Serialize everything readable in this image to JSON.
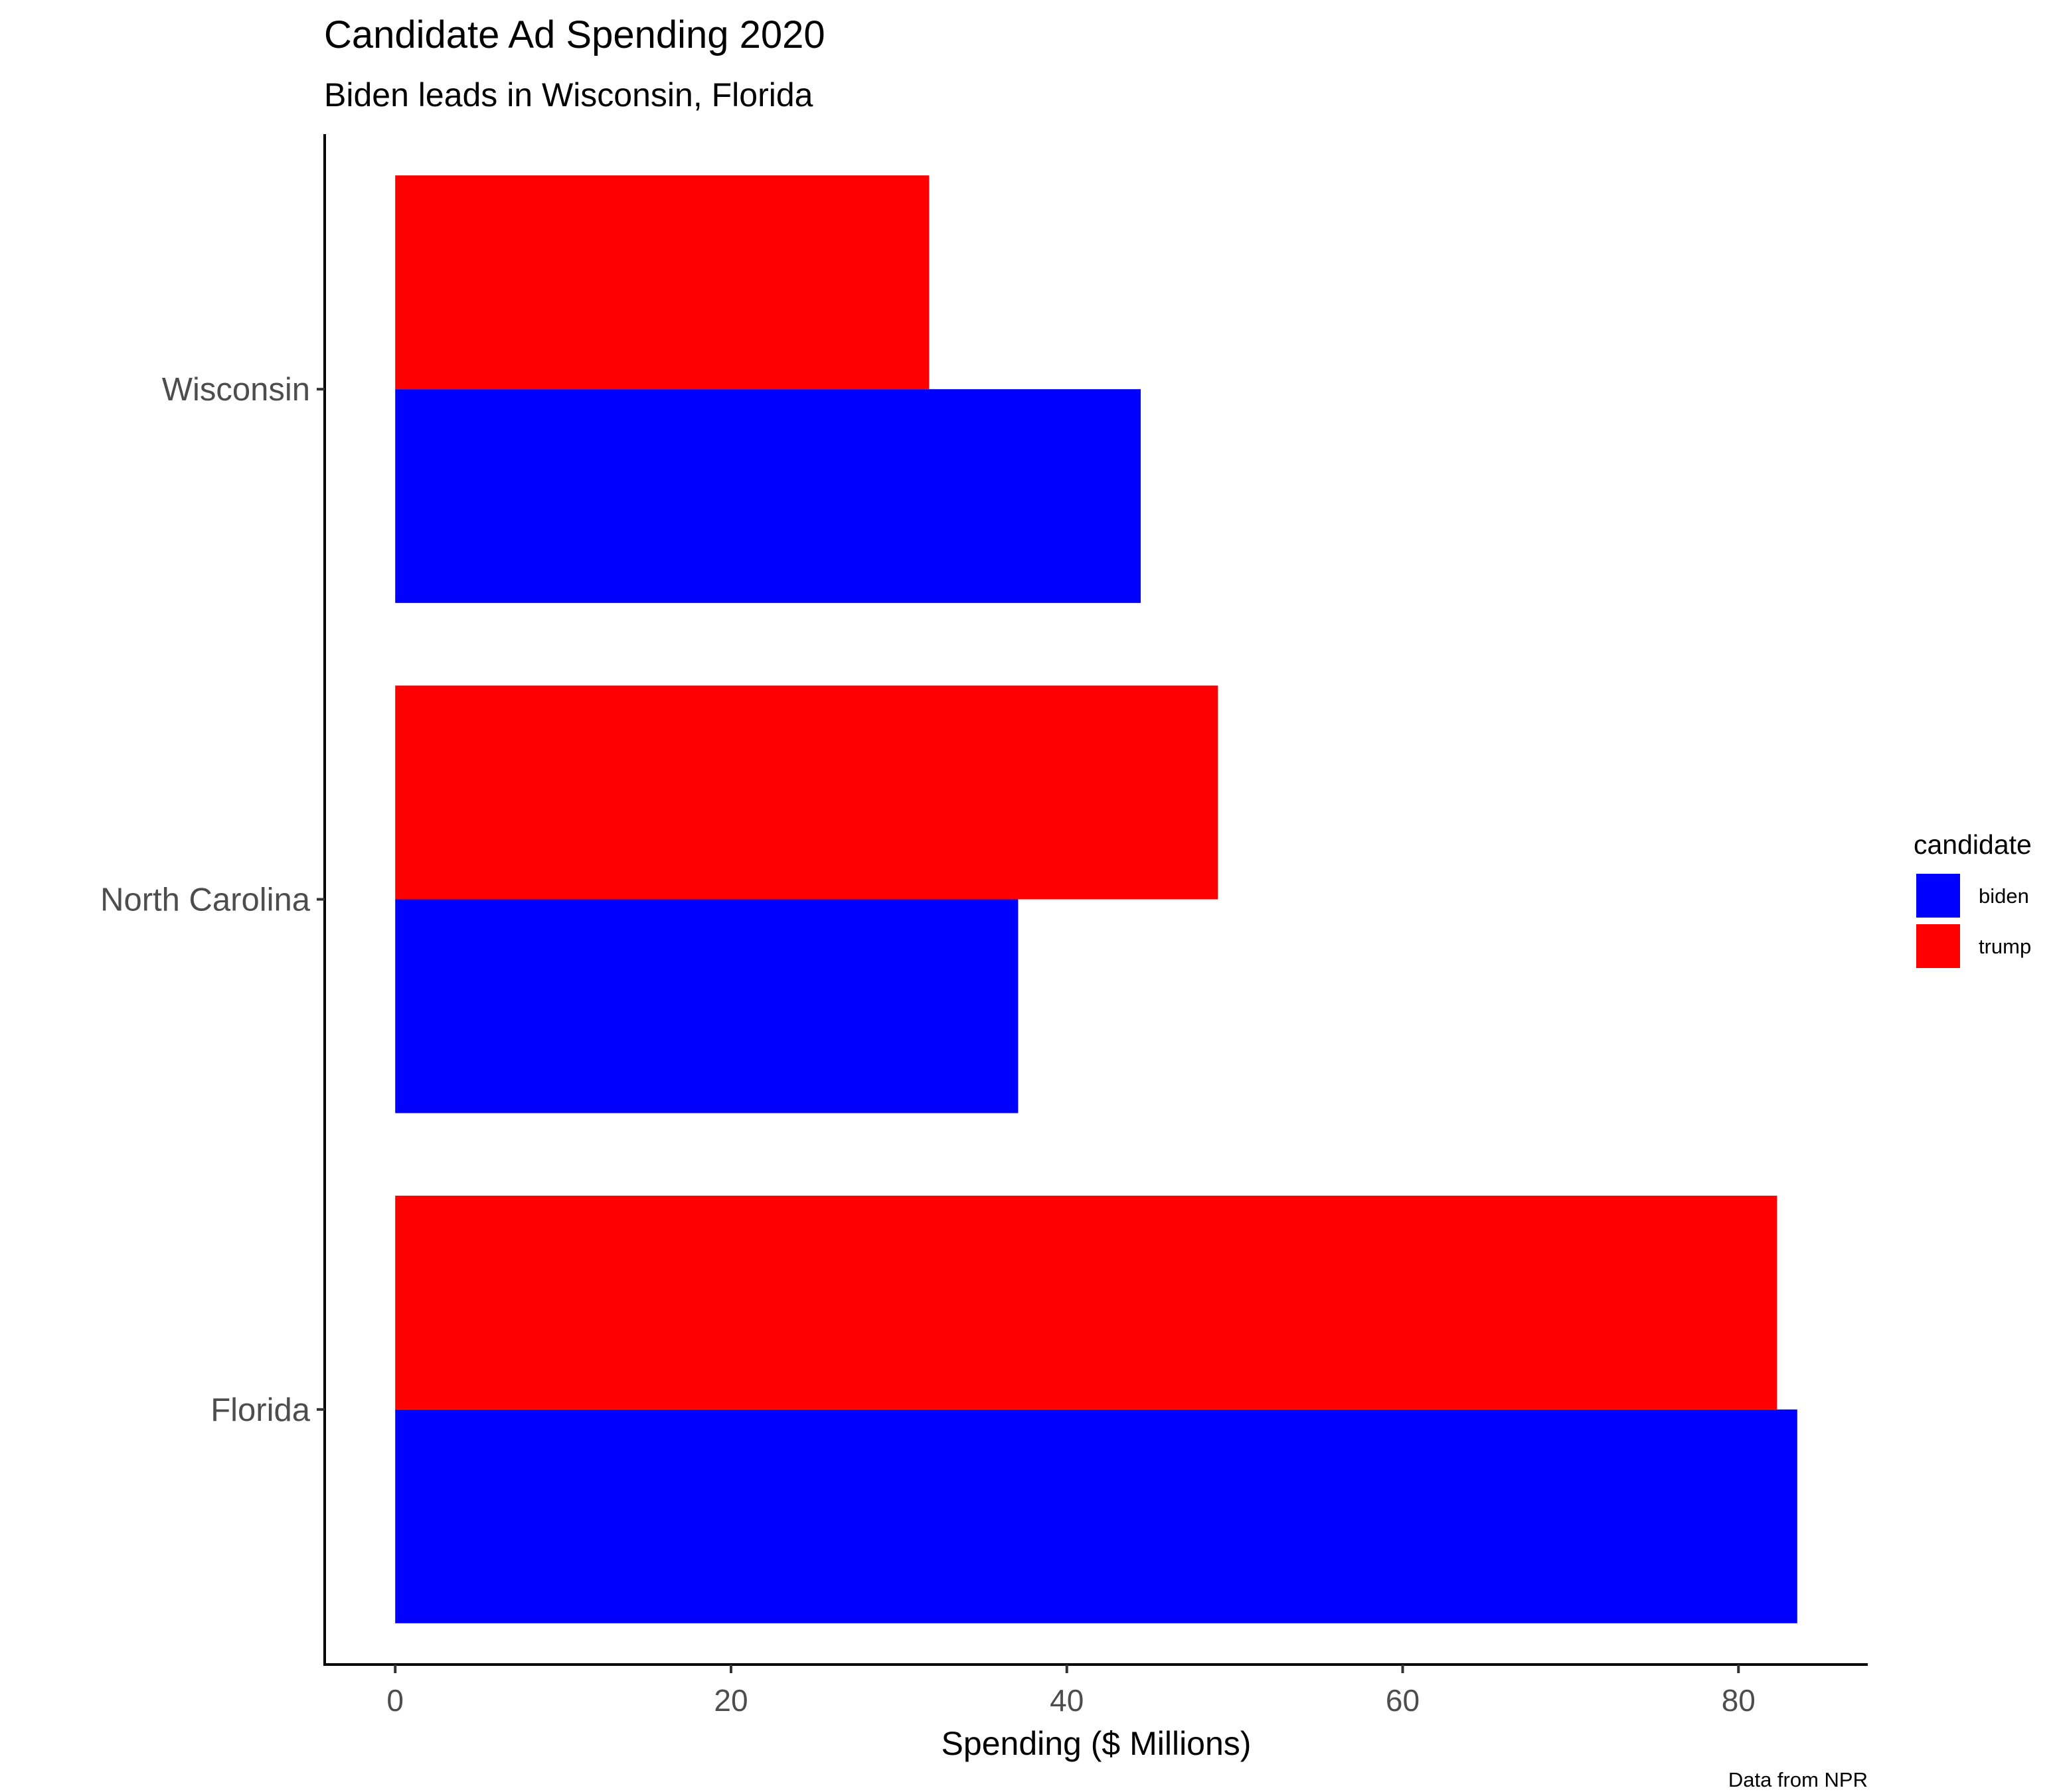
{
  "chart_data": {
    "type": "bar",
    "orientation": "horizontal",
    "title": "Candidate Ad Spending 2020",
    "subtitle": "Biden leads in Wisconsin, Florida",
    "xlabel": "Spending ($ Millions)",
    "ylabel": "",
    "caption": "Data from NPR",
    "categories": [
      "Wisconsin",
      "North Carolina",
      "Florida"
    ],
    "series": [
      {
        "name": "biden",
        "color": "#0000ff",
        "values": [
          44.4,
          37.1,
          83.5
        ]
      },
      {
        "name": "trump",
        "color": "#ff0000",
        "values": [
          31.8,
          49.0,
          82.3
        ]
      }
    ],
    "xlim": [
      -4.2,
      87.7
    ],
    "xticks": [
      0,
      20,
      40,
      60,
      80
    ],
    "grid": false,
    "legend": {
      "title": "candidate",
      "placement": "right"
    }
  }
}
